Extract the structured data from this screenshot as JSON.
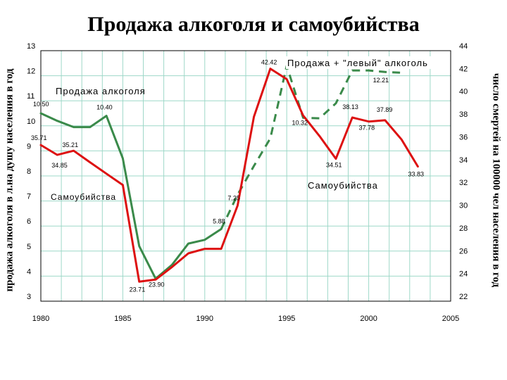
{
  "chart_data": {
    "type": "line",
    "title": "Продажа алкоголя и самоубийства",
    "ylabel_left": "продажа алкоголя в л.на душу населения в год",
    "ylabel_right": "число смертей на 100000 чел населения в год",
    "x_ticks": [
      "1980",
      "1985",
      "1990",
      "1995",
      "2000",
      "2005"
    ],
    "y_left_ticks": [
      "3",
      "4",
      "5",
      "6",
      "7",
      "8",
      "9",
      "10",
      "11",
      "12",
      "13"
    ],
    "y_right_ticks": [
      "22",
      "24",
      "26",
      "28",
      "30",
      "32",
      "34",
      "36",
      "38",
      "40",
      "42",
      "44"
    ],
    "xlim": [
      1980,
      2005
    ],
    "ylim_left": [
      3,
      13
    ],
    "ylim_right": [
      22,
      44
    ],
    "grid": true,
    "series": [
      {
        "name": "Продажа алкоголя",
        "axis": "left",
        "color": "#3a8a4a",
        "style": "solid",
        "points": [
          [
            1980,
            10.5
          ],
          [
            1981,
            10.2
          ],
          [
            1982,
            9.95
          ],
          [
            1983,
            9.95
          ],
          [
            1984,
            10.4
          ],
          [
            1985,
            8.7
          ],
          [
            1986,
            5.2
          ],
          [
            1987,
            3.9
          ],
          [
            1988,
            4.45
          ],
          [
            1989,
            5.3
          ],
          [
            1990,
            5.45
          ],
          [
            1991,
            5.88
          ]
        ]
      },
      {
        "name": "Продажа + \"левый\" алкоголь",
        "axis": "left",
        "color": "#3a8a4a",
        "style": "dashed",
        "points": [
          [
            1991,
            5.88
          ],
          [
            1992,
            7.25
          ],
          [
            1993,
            8.4
          ],
          [
            1994,
            9.5
          ],
          [
            1995,
            12.4
          ],
          [
            1996,
            10.32
          ],
          [
            1997,
            10.3
          ],
          [
            1998,
            10.9
          ],
          [
            1999,
            12.21
          ],
          [
            2000,
            12.21
          ],
          [
            2001,
            12.15
          ],
          [
            2002,
            12.12
          ]
        ]
      },
      {
        "name": "Самоубийства",
        "axis": "right",
        "color": "#dd1111",
        "style": "solid",
        "points": [
          [
            1980,
            35.71
          ],
          [
            1981,
            34.85
          ],
          [
            1982,
            35.21
          ],
          [
            1983,
            34.2
          ],
          [
            1984,
            33.2
          ],
          [
            1985,
            32.2
          ],
          [
            1986,
            23.71
          ],
          [
            1987,
            23.9
          ],
          [
            1988,
            25.0
          ],
          [
            1989,
            26.2
          ],
          [
            1990,
            26.6
          ],
          [
            1991,
            26.6
          ],
          [
            1992,
            30.4
          ],
          [
            1993,
            38.2
          ],
          [
            1994,
            42.42
          ],
          [
            1995,
            41.5
          ],
          [
            1996,
            38.3
          ],
          [
            1997,
            36.5
          ],
          [
            1998,
            34.51
          ],
          [
            1999,
            38.13
          ],
          [
            2000,
            37.78
          ],
          [
            2001,
            37.89
          ],
          [
            2002,
            36.2
          ],
          [
            2003,
            33.83
          ]
        ]
      }
    ],
    "data_labels": [
      "10.50",
      "10.40",
      "35.71",
      "34.85",
      "35.21",
      "23.71",
      "23.90",
      "5.88",
      "7.25",
      "42.42",
      "10.32",
      "38.13",
      "37.78",
      "37.89",
      "34.51",
      "33.83",
      "12.21"
    ],
    "annotations": [
      "Продажа алкоголя",
      "Самоубийства",
      "Продажа + \"левый\" алкоголь",
      "Самоубийства"
    ]
  }
}
